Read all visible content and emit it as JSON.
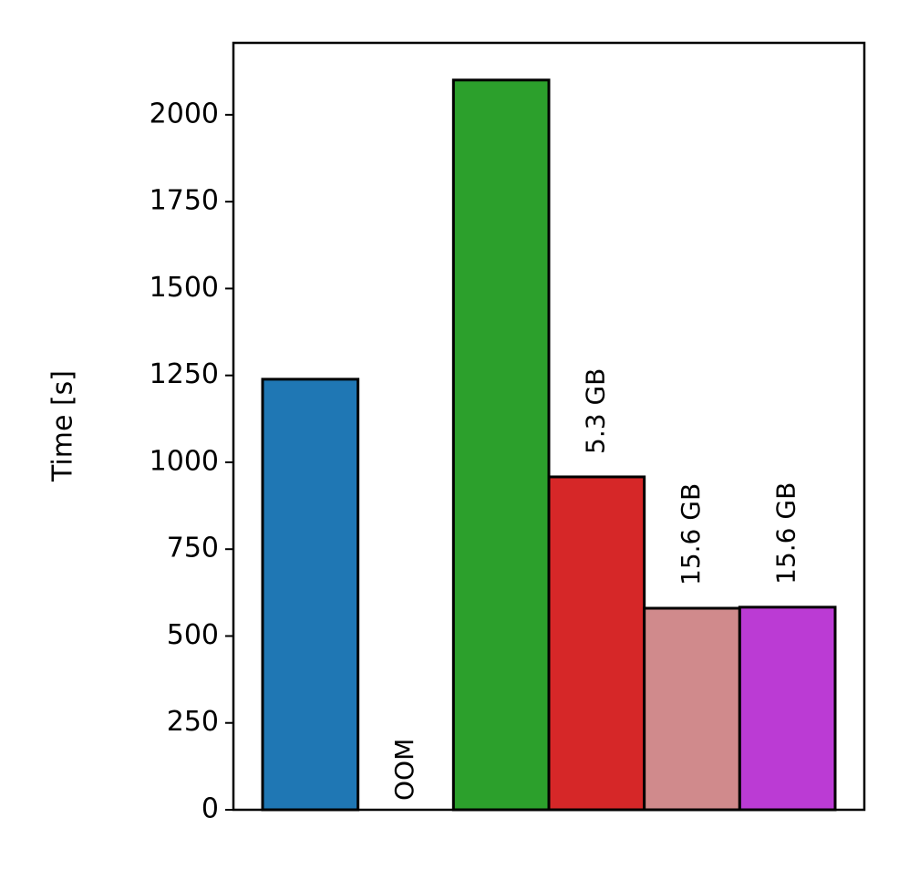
{
  "chart_data": {
    "type": "bar",
    "ylabel": "Time [s]",
    "categories": [
      null,
      null,
      null,
      null,
      null,
      null
    ],
    "values": [
      1239,
      null,
      2100,
      958,
      580,
      583
    ],
    "colors": [
      "#1f77b4",
      "#ff7f0e",
      "#2ca02c",
      "#d62728",
      "#d08a8c",
      "#bb3bd4"
    ],
    "annotations": [
      null,
      "OOM",
      null,
      "5.3 GB",
      "15.6 GB",
      "15.6 GB"
    ],
    "ylim": [
      0,
      2207
    ],
    "yticks": [
      0,
      250,
      500,
      750,
      1000,
      1250,
      1500,
      1750,
      2000
    ]
  }
}
